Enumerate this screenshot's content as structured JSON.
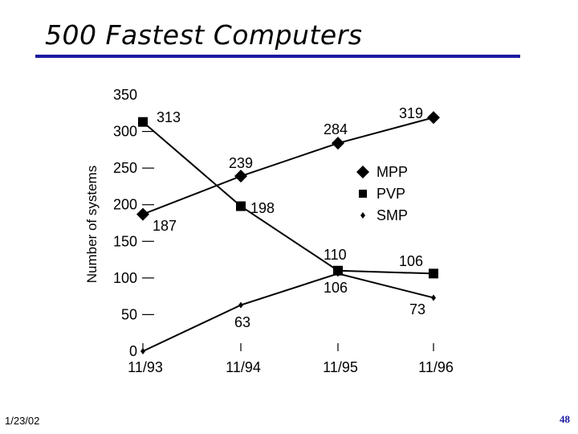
{
  "slide": {
    "title": "500 Fastest Computers",
    "footer_date": "1/23/02",
    "page_number": "48"
  },
  "colors": {
    "title_rule": "#1a1aa0",
    "page_number": "#1a1aa0",
    "series_line": "#000000"
  },
  "chart_data": {
    "type": "line",
    "title": "",
    "xlabel": "",
    "ylabel": "Number of systems",
    "categories": [
      "11/93",
      "11/94",
      "11/95",
      "11/96"
    ],
    "ylim": [
      0,
      350
    ],
    "yticks": [
      0,
      50,
      100,
      150,
      200,
      250,
      300,
      350
    ],
    "grid": false,
    "legend_position": "right",
    "series": [
      {
        "name": "MPP",
        "marker": "diamond",
        "values": [
          187,
          239,
          284,
          319
        ]
      },
      {
        "name": "PVP",
        "marker": "square",
        "values": [
          313,
          198,
          110,
          106
        ]
      },
      {
        "name": "SMP",
        "marker": "small-diamond",
        "values": [
          0,
          63,
          106,
          73
        ]
      }
    ],
    "data_labels": [
      "187",
      "239",
      "284",
      "319",
      "313",
      "198",
      "110",
      "106",
      "63",
      "106",
      "73"
    ]
  }
}
